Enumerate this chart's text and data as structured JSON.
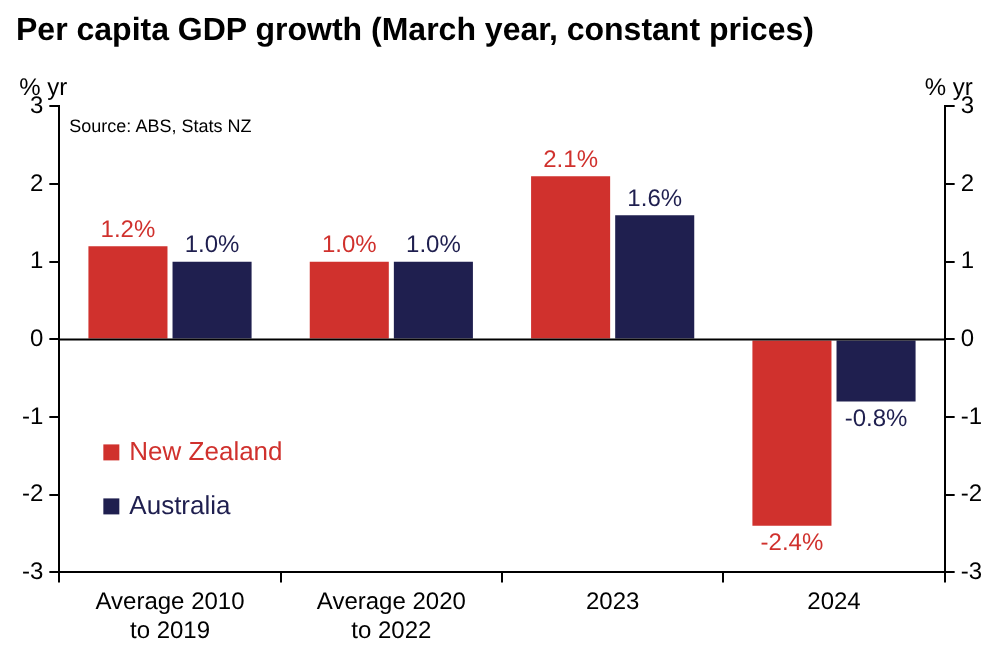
{
  "chart_data": {
    "type": "bar",
    "title": "Per capita GDP growth (March year, constant prices)",
    "ylabel": "% yr",
    "y2label": "% yr",
    "annotations": [
      "Source: ABS, Stats NZ"
    ],
    "categories": [
      "Average 2010 to 2019",
      "Average 2020 to 2022",
      "2023",
      "2024"
    ],
    "series": [
      {
        "name": "New Zealand",
        "color": "#d0312d",
        "values": [
          1.2,
          1.0,
          2.1,
          -2.4
        ],
        "value_labels": [
          "1.2%",
          "1.0%",
          "2.1%",
          "-2.4%"
        ]
      },
      {
        "name": "Australia",
        "color": "#1f1f4f",
        "values": [
          1.0,
          1.0,
          1.6,
          -0.8
        ],
        "value_labels": [
          "1.0%",
          "1.0%",
          "1.6%",
          "-0.8%"
        ]
      }
    ],
    "ylim": [
      -3,
      3
    ],
    "yticks": [
      -3,
      -2,
      -1,
      0,
      1,
      2,
      3
    ],
    "y2lim": [
      -3,
      3
    ],
    "y2ticks": [
      -3,
      -2,
      -1,
      0,
      1,
      2,
      3
    ],
    "legend": "bottom left"
  }
}
